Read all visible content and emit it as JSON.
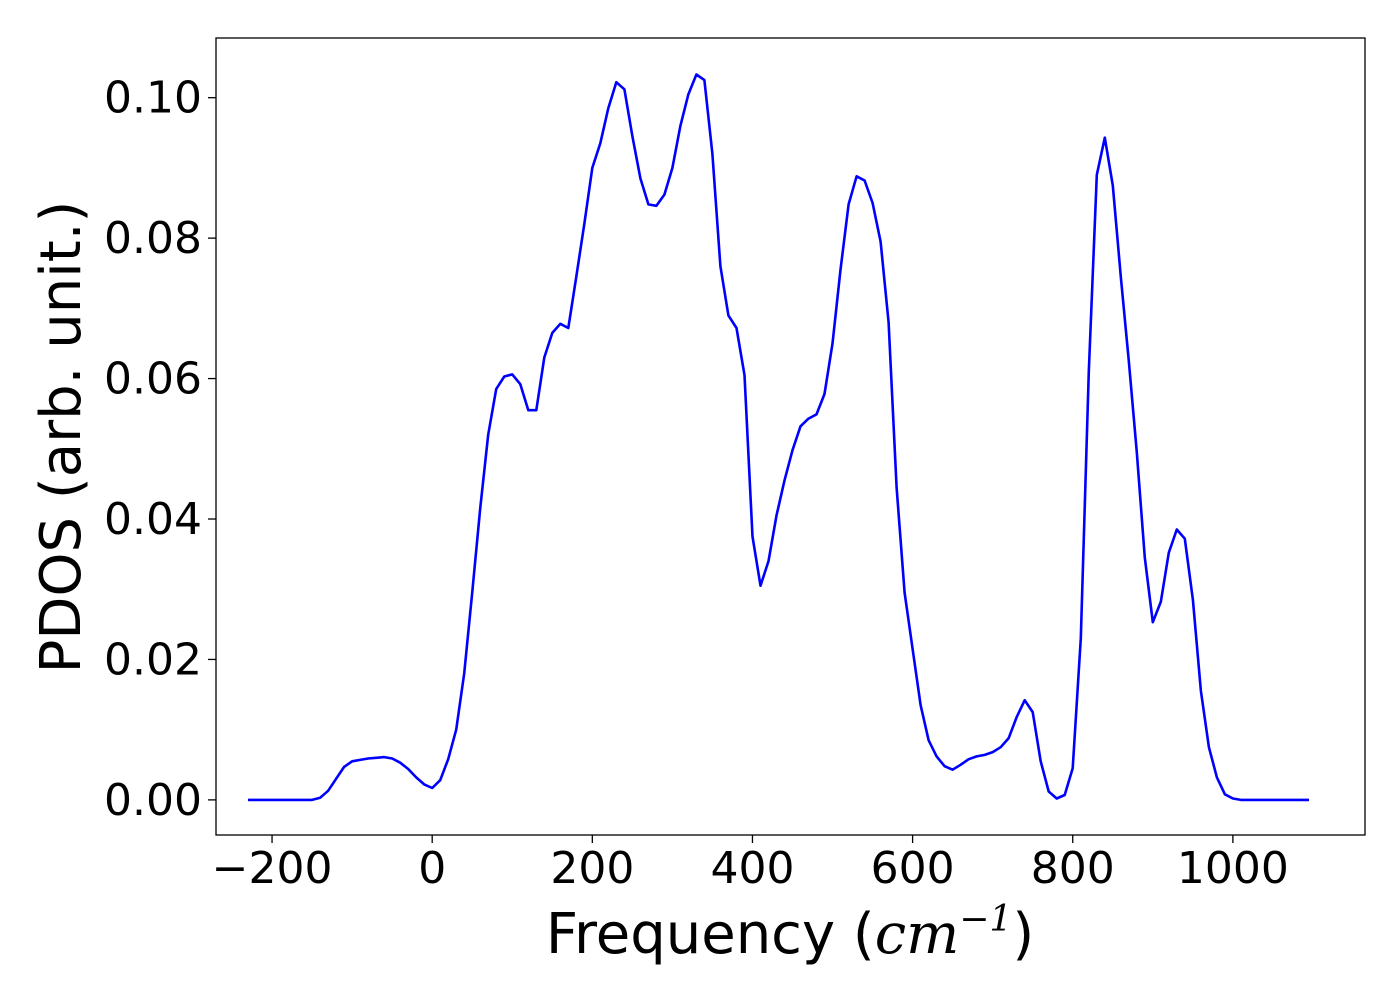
{
  "chart_data": {
    "type": "line",
    "title": "",
    "xlabel": "Frequency",
    "xlabel_unit_base": "cm",
    "xlabel_unit_exp": "−1",
    "ylabel": "PDOS (arb. unit.)",
    "xlim": [
      -270,
      1165
    ],
    "ylim": [
      -0.005,
      0.1085
    ],
    "x_ticks": [
      -200,
      0,
      200,
      400,
      600,
      800,
      1000
    ],
    "x_tick_labels": [
      "−200",
      "0",
      "200",
      "400",
      "600",
      "800",
      "1000"
    ],
    "y_ticks": [
      0.0,
      0.02,
      0.04,
      0.06,
      0.08,
      0.1
    ],
    "y_tick_labels": [
      "0.00",
      "0.02",
      "0.04",
      "0.06",
      "0.08",
      "0.10"
    ],
    "grid": false,
    "legend": "none",
    "series": [
      {
        "color": "#0000ff",
        "x": [
          -230,
          -150,
          -140,
          -130,
          -120,
          -110,
          -100,
          -90,
          -80,
          -70,
          -60,
          -50,
          -40,
          -30,
          -20,
          -10,
          0,
          10,
          20,
          30,
          40,
          50,
          60,
          70,
          80,
          90,
          100,
          110,
          120,
          130,
          140,
          150,
          160,
          170,
          180,
          190,
          200,
          210,
          220,
          230,
          240,
          250,
          260,
          270,
          280,
          290,
          300,
          310,
          320,
          330,
          340,
          350,
          360,
          370,
          380,
          390,
          400,
          410,
          420,
          430,
          440,
          450,
          460,
          470,
          480,
          490,
          500,
          510,
          520,
          530,
          540,
          550,
          560,
          570,
          580,
          590,
          600,
          610,
          620,
          630,
          640,
          650,
          660,
          670,
          680,
          690,
          700,
          710,
          720,
          730,
          740,
          750,
          760,
          770,
          780,
          790,
          800,
          810,
          820,
          830,
          840,
          850,
          860,
          870,
          880,
          890,
          900,
          910,
          920,
          930,
          940,
          950,
          960,
          970,
          980,
          990,
          1000,
          1010,
          1020,
          1095
        ],
        "y": [
          0.0,
          0.0,
          0.0003,
          0.0013,
          0.003,
          0.0047,
          0.0055,
          0.0057,
          0.0059,
          0.006,
          0.0061,
          0.0059,
          0.0053,
          0.0044,
          0.0032,
          0.0022,
          0.0017,
          0.0028,
          0.0058,
          0.01,
          0.018,
          0.0295,
          0.0415,
          0.052,
          0.0585,
          0.0603,
          0.0606,
          0.0592,
          0.0555,
          0.0555,
          0.063,
          0.0665,
          0.0678,
          0.0672,
          0.0745,
          0.082,
          0.09,
          0.0935,
          0.0985,
          0.1022,
          0.1012,
          0.0945,
          0.0885,
          0.0848,
          0.0846,
          0.0862,
          0.09,
          0.096,
          0.1005,
          0.1033,
          0.1025,
          0.092,
          0.076,
          0.069,
          0.0672,
          0.0605,
          0.0375,
          0.0305,
          0.034,
          0.0405,
          0.0455,
          0.0498,
          0.0532,
          0.0543,
          0.0549,
          0.0578,
          0.065,
          0.0755,
          0.0848,
          0.0888,
          0.0882,
          0.085,
          0.0795,
          0.068,
          0.0445,
          0.0295,
          0.0215,
          0.0135,
          0.0085,
          0.0062,
          0.0048,
          0.0043,
          0.005,
          0.0058,
          0.0062,
          0.0064,
          0.0068,
          0.0075,
          0.0088,
          0.0118,
          0.0142,
          0.0125,
          0.0055,
          0.0012,
          0.0002,
          0.0007,
          0.0045,
          0.023,
          0.061,
          0.089,
          0.0943,
          0.0875,
          0.0745,
          0.0625,
          0.0495,
          0.0345,
          0.0253,
          0.0282,
          0.0352,
          0.0385,
          0.0372,
          0.0285,
          0.0155,
          0.0075,
          0.0032,
          0.0008,
          0.0002,
          0.0,
          0.0,
          0.0
        ]
      }
    ]
  }
}
